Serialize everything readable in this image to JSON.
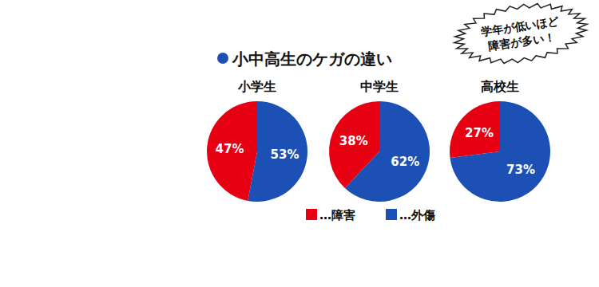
{
  "title": "小中高生のケガの違い",
  "annotation": [
    "学年が低いほど",
    "障害が多い！"
  ],
  "chart_data": [
    {
      "type": "pie",
      "title": "小学生",
      "categories": [
        "…障害",
        "…外傷"
      ],
      "values": [
        47,
        53
      ],
      "value_labels": [
        "47%",
        "53%"
      ],
      "colors": [
        "#e60012",
        "#1d50b4"
      ],
      "data_labels": true,
      "legend": "bottom"
    },
    {
      "type": "pie",
      "title": "中学生",
      "categories": [
        "…障害",
        "…外傷"
      ],
      "values": [
        38,
        62
      ],
      "value_labels": [
        "38%",
        "62%"
      ],
      "colors": [
        "#e60012",
        "#1d50b4"
      ],
      "data_labels": true,
      "legend": "bottom"
    },
    {
      "type": "pie",
      "title": "高校生",
      "categories": [
        "…障害",
        "…外傷"
      ],
      "values": [
        27,
        73
      ],
      "value_labels": [
        "27%",
        "73%"
      ],
      "colors": [
        "#e60012",
        "#1d50b4"
      ],
      "data_labels": true,
      "legend": "bottom"
    }
  ]
}
